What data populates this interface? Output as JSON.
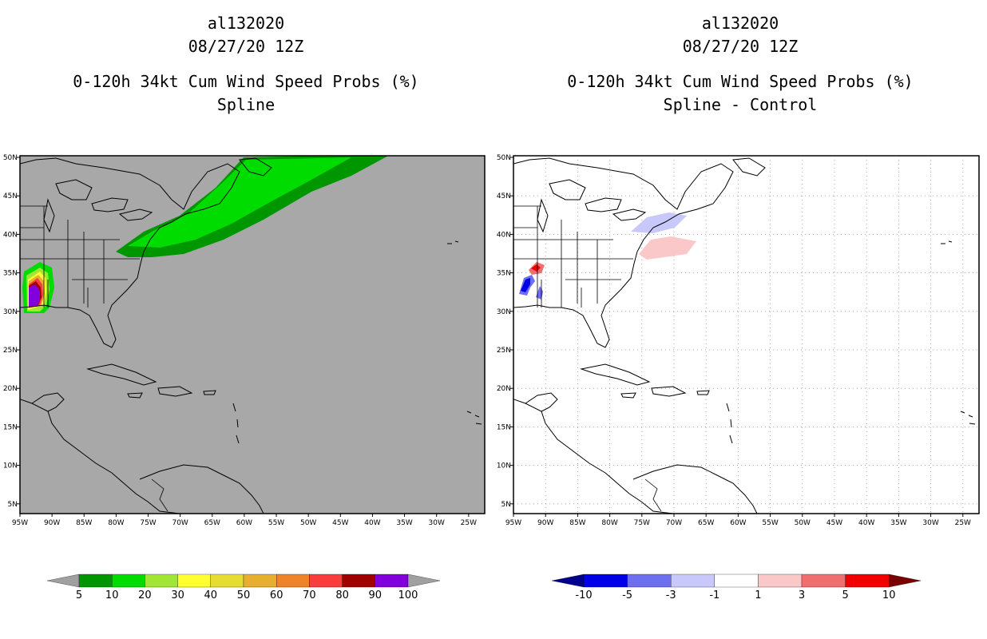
{
  "left_panel": {
    "storm_id": "al132020",
    "datetime": "08/27/20 12Z",
    "product": "0-120h 34kt Cum Wind Speed Probs (%)",
    "field": "Spline",
    "colorbar": {
      "labels": [
        "5",
        "10",
        "20",
        "30",
        "40",
        "50",
        "60",
        "70",
        "80",
        "90",
        "100"
      ],
      "colors": [
        "#009600",
        "#00dc00",
        "#a0e632",
        "#ffff32",
        "#e6dc32",
        "#e6af2d",
        "#f08228",
        "#fa3c3c",
        "#a00000",
        "#8200dc"
      ],
      "end_color": "#a0a0a0"
    }
  },
  "right_panel": {
    "storm_id": "al132020",
    "datetime": "08/27/20 12Z",
    "product": "0-120h 34kt Cum Wind Speed Probs (%)",
    "field": "Spline - Control",
    "colorbar": {
      "labels": [
        "-10",
        "-5",
        "-3",
        "-1",
        "1",
        "3",
        "5",
        "10"
      ],
      "colors": [
        "#0000e6",
        "#6e6ef0",
        "#c8c8fa",
        "#ffffff",
        "#fac8c8",
        "#f06e6e",
        "#f00000"
      ],
      "low_end_color": "#00008c",
      "high_end_color": "#780000"
    }
  },
  "map_axes": {
    "lon_labels": [
      "95W",
      "90W",
      "85W",
      "80W",
      "75W",
      "70W",
      "65W",
      "60W",
      "55W",
      "50W",
      "45W",
      "40W",
      "35W",
      "30W",
      "25W"
    ],
    "lat_labels": [
      "50N",
      "45N",
      "40N",
      "35N",
      "30N",
      "25N",
      "20N",
      "15N",
      "10N",
      "5N"
    ],
    "lon_range": [
      -95,
      -22.5
    ],
    "lat_range": [
      3.5,
      50
    ]
  },
  "colors": {
    "land_sea_gray": "#a8a8a8",
    "prob_outer": "#00c800",
    "prob_mid": "#009600",
    "coastline": "#000000"
  }
}
